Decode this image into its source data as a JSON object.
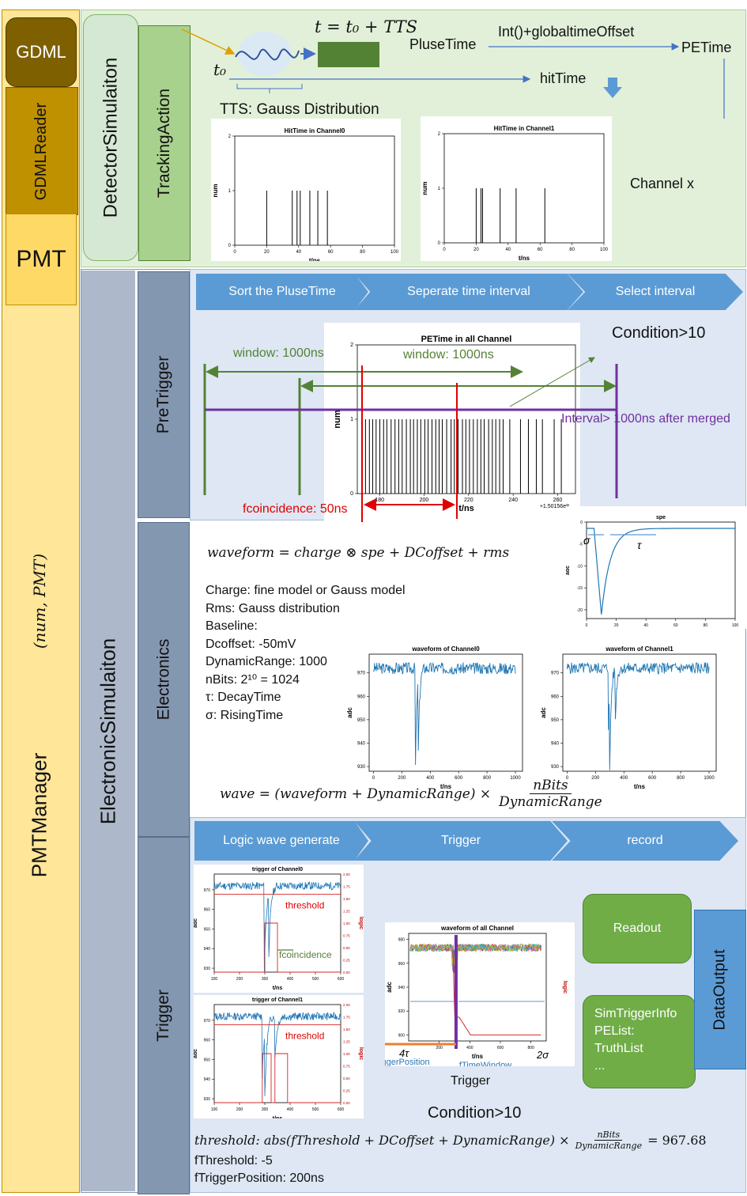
{
  "left_bar": {
    "gdml": "GDML",
    "gdml_reader": "GDMLReader",
    "pmt": "PMT",
    "num_pmt": "(num, PMT)",
    "pmt_manager": "PMTManager"
  },
  "detector": {
    "title": "DetectorSimulaiton",
    "tracking": "TrackingAction",
    "eq_t": "t = t₀ + TTS",
    "t0": "t₀",
    "tts": "TTS: Gauss Distribution",
    "pulse_time": "PluseTime",
    "int_offset": "Int()+globaltimeOffset",
    "pe_time": "PETime",
    "hit_time": "hitTime",
    "channel_x": "Channel x",
    "plot0": {
      "title": "HitTime in Channel0",
      "xlabel": "t/ns",
      "ylabel": "num"
    },
    "plot1": {
      "title": "HitTime in Channel1",
      "xlabel": "t/ns",
      "ylabel": "num"
    }
  },
  "electronic": {
    "title": "ElectronicSimulaiton",
    "pretrigger": "PreTrigger",
    "electronics": "Electronics",
    "trigger": "Trigger",
    "chev_pre": [
      "Sort the PluseTime",
      "Seperate time interval",
      "Select interval"
    ],
    "condition": "Condition>10",
    "window1": "window: 1000ns",
    "window2": "window: 1000ns",
    "interval": "Interval> 1000ns after merged",
    "fcoincidence": "fcoincidence: 50ns",
    "pe_plot": {
      "title": "PETime in all Channel",
      "xlabel": "t/ns",
      "ylabel": "num",
      "offset": "+1.50156e8"
    },
    "waveform_eq": "waveform = charge ⊗ spe + DCoffset + rms",
    "params": [
      "Charge: fine model or Gauss model",
      "Rms: Gauss distribution",
      "Baseline:",
      "Dcoffset: -50mV",
      "DynamicRange: 1000",
      "nBits: 2¹⁰ = 1024",
      "τ: DecayTime",
      "σ: RisingTime"
    ],
    "spe_plot": {
      "title": "spe",
      "ylabel": "adc",
      "sigma": "σ",
      "tau": "τ"
    },
    "wf0": {
      "title": "waveform of Channel0",
      "xlabel": "t/ns",
      "ylabel": "adc"
    },
    "wf1": {
      "title": "waveform of Channel1",
      "xlabel": "t/ns",
      "ylabel": "adc"
    },
    "wave_eq": "wave = (waveform + DynamicRange) ×",
    "wave_num": "nBits",
    "wave_den": "DynamicRange",
    "chev_trig": [
      "Logic wave generate",
      "Trigger",
      "record"
    ],
    "trig0": {
      "title": "trigger of Channel0",
      "xlabel": "t/ns",
      "ylabel": "adc",
      "ylabel2": "logic",
      "threshold": "threshold",
      "fcoin": "fcoincidence"
    },
    "trig1": {
      "title": "trigger of Channel1",
      "xlabel": "t/ns",
      "ylabel": "adc",
      "ylabel2": "logic",
      "threshold": "threshold"
    },
    "all_plot": {
      "title": "waveform of all Channel",
      "xlabel": "t/ns",
      "ylabel": "adc",
      "ylabel2": "logic",
      "tau4": "4τ",
      "sigma2": "2σ",
      "fpos": "fTriggerPosition",
      "fwin": "fTimeWindow",
      "caption": "Trigger"
    },
    "condition2": "Condition>10",
    "threshold_eq": "threshold: abs(fThreshold + DCoffset + DynamicRange) ×",
    "th_num": "nBits",
    "th_den": "DynamicRange",
    "th_val": "= 967.68",
    "fthreshold": "fThreshold: -5",
    "ftrigpos": "fTriggerPosition: 200ns",
    "readout": "Readout",
    "sim_info": [
      "SimTriggerInfo",
      "PEList:",
      "TruthList",
      "..."
    ],
    "data_output": "DataOutput"
  }
}
